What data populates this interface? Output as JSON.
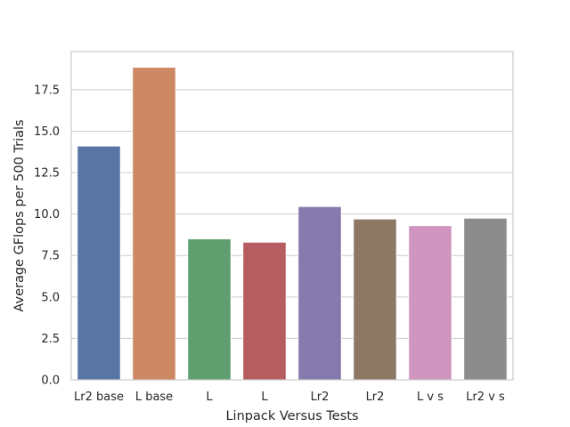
{
  "chart_data": {
    "type": "bar",
    "title": "",
    "xlabel": "Linpack Versus Tests",
    "ylabel": "Average GFlops per 500 Trials",
    "categories": [
      "Lr2 base",
      "L base",
      "L",
      "L",
      "Lr2",
      "Lr2",
      "L v s",
      "Lr2 v s"
    ],
    "values": [
      14.1,
      18.85,
      8.5,
      8.3,
      10.45,
      9.7,
      9.3,
      9.75
    ],
    "colors": [
      "#5975a4",
      "#cc8963",
      "#5f9e6e",
      "#b55d60",
      "#857aab",
      "#8d7866",
      "#d095bf",
      "#8c8c8c"
    ],
    "ylim": [
      0,
      19.8
    ],
    "yticks": [
      0.0,
      2.5,
      5.0,
      7.5,
      10.0,
      12.5,
      15.0,
      17.5
    ],
    "ytick_labels": [
      "0.0",
      "2.5",
      "5.0",
      "7.5",
      "10.0",
      "12.5",
      "15.0",
      "17.5"
    ],
    "grid": true,
    "grid_axis": "y"
  }
}
